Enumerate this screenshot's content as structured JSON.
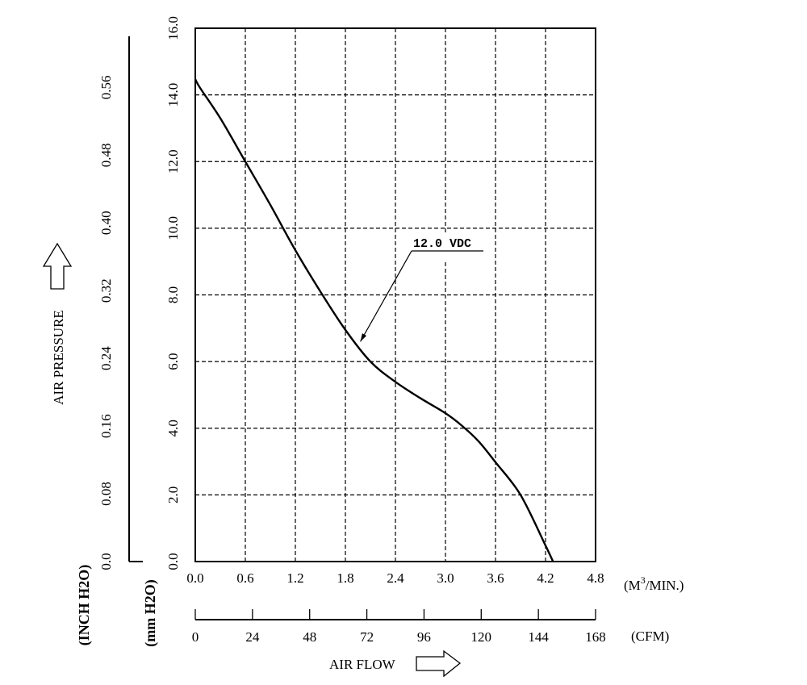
{
  "chart_data": {
    "type": "line",
    "title": "",
    "xlabel": "AIR FLOW",
    "ylabel": "AIR PRESSURE",
    "x_unit_primary": "(M3/MIN.)",
    "x_unit_primary_base": "(M",
    "x_unit_primary_sup": "3",
    "x_unit_primary_tail": "/MIN.)",
    "x_unit_secondary": "(CFM)",
    "y_unit_primary": "(mm H2O)",
    "y_unit_secondary": "(INCH H2O)",
    "xlim": [
      0,
      4.8
    ],
    "ylim": [
      0,
      16
    ],
    "grid": true,
    "x_ticks": [
      "0.0",
      "0.6",
      "1.2",
      "1.8",
      "2.4",
      "3.0",
      "3.6",
      "4.2",
      "4.8"
    ],
    "y_ticks": [
      "0.0",
      "2.0",
      "4.0",
      "6.0",
      "8.0",
      "10.0",
      "12.0",
      "14.0",
      "16.0"
    ],
    "cfm_ticks": [
      "0",
      "24",
      "48",
      "72",
      "96",
      "120",
      "144",
      "168"
    ],
    "inch_ticks": [
      "0.0",
      "0.08",
      "0.16",
      "0.24",
      "0.32",
      "0.40",
      "0.48",
      "0.56"
    ],
    "series": [
      {
        "name": "12.0 VDC",
        "x": [
          0.0,
          0.06,
          0.3,
          0.6,
          0.9,
          1.2,
          1.5,
          1.8,
          2.1,
          2.4,
          2.7,
          3.0,
          3.2,
          3.4,
          3.6,
          3.9,
          4.2,
          4.29
        ],
        "y": [
          14.47,
          14.2,
          13.3,
          12.0,
          10.7,
          9.34,
          8.1,
          6.95,
          6.0,
          5.39,
          4.9,
          4.45,
          4.07,
          3.6,
          2.98,
          2.0,
          0.48,
          0.0
        ]
      }
    ],
    "annotations": [
      {
        "text": "12.0 VDC",
        "x": 1.98,
        "y": 6.6
      }
    ]
  }
}
